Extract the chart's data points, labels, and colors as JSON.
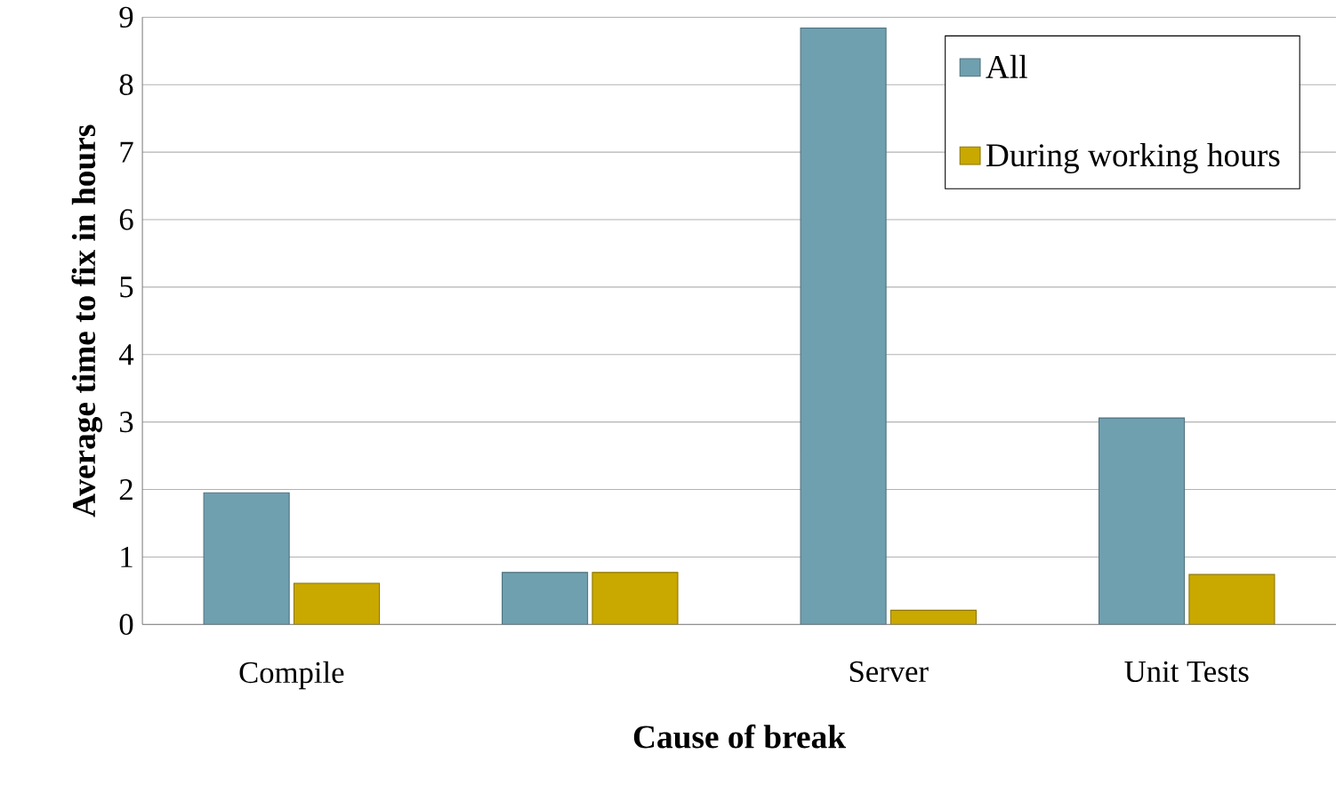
{
  "chart_data": {
    "type": "bar",
    "xlabel": "Cause of break",
    "ylabel": "Average time to fix in hours",
    "categories": [
      "Compile",
      null,
      "Server",
      "Unit Tests"
    ],
    "series": [
      {
        "name": "All",
        "color": "#6fa0b0",
        "values": [
          1.95,
          0.77,
          8.84,
          3.06
        ]
      },
      {
        "name": "During working hours",
        "color": "#c9a800",
        "values": [
          0.61,
          0.77,
          0.21,
          0.74
        ]
      }
    ],
    "ylim": [
      0,
      9
    ],
    "yticks": [
      0,
      1,
      2,
      3,
      4,
      5,
      6,
      7,
      8,
      9
    ],
    "grid": "y",
    "legend": "top right"
  }
}
